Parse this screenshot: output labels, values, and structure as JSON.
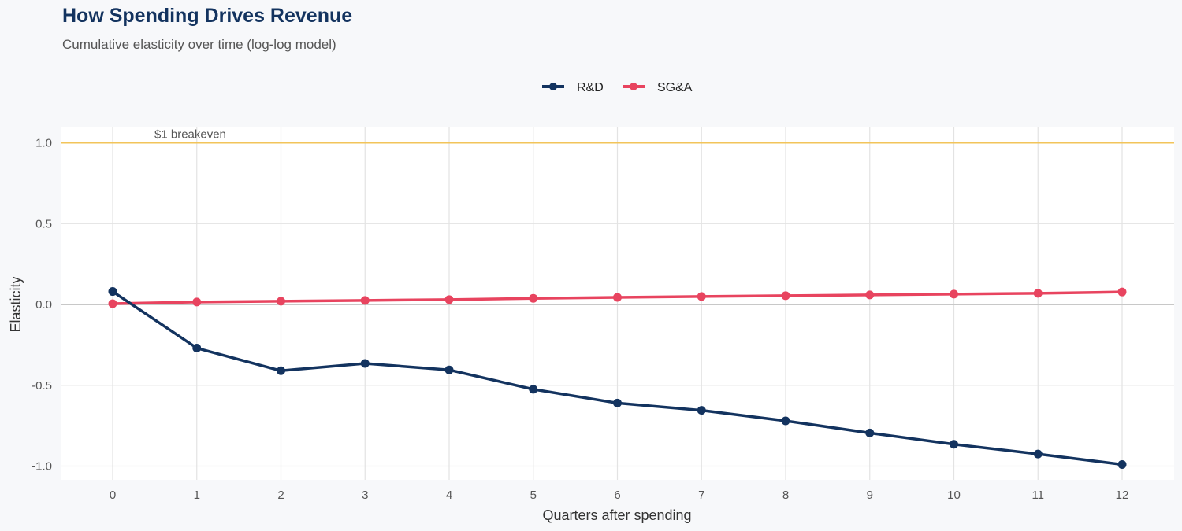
{
  "header": {
    "title": "How Spending Drives Revenue",
    "subtitle": "Cumulative elasticity over time (log-log model)"
  },
  "chart_data": {
    "type": "line",
    "title": "How Spending Drives Revenue",
    "subtitle": "Cumulative elasticity over time (log-log model)",
    "xlabel": "Quarters after spending",
    "ylabel": "Elasticity",
    "x": [
      0,
      1,
      2,
      3,
      4,
      5,
      6,
      7,
      8,
      9,
      10,
      11,
      12
    ],
    "x_ticks": [
      "0",
      "1",
      "2",
      "3",
      "4",
      "5",
      "6",
      "7",
      "8",
      "9",
      "10",
      "11",
      "12"
    ],
    "y_ticks": [
      "-1.0",
      "-0.5",
      "0.0",
      "0.5",
      "1.0"
    ],
    "y_tick_values": [
      -1.0,
      -0.5,
      0.0,
      0.5,
      1.0
    ],
    "xlim": [
      -0.6,
      12.6
    ],
    "ylim": [
      -1.1,
      1.1
    ],
    "grid": true,
    "legend_position": "top",
    "series": [
      {
        "name": "R&D",
        "color": "#13335f",
        "values": [
          0.08,
          -0.27,
          -0.41,
          -0.365,
          -0.405,
          -0.525,
          -0.61,
          -0.655,
          -0.72,
          -0.795,
          -0.865,
          -0.925,
          -0.99
        ]
      },
      {
        "name": "SG&A",
        "color": "#e8445f",
        "values": [
          0.005,
          0.015,
          0.02,
          0.025,
          0.03,
          0.038,
          0.044,
          0.049,
          0.054,
          0.059,
          0.064,
          0.069,
          0.077
        ]
      }
    ],
    "reference_lines": [
      {
        "y": 1.0,
        "label": "$1 breakeven",
        "color": "#f2c45a"
      },
      {
        "y": 0.0,
        "color": "#c8c8c8"
      }
    ]
  }
}
